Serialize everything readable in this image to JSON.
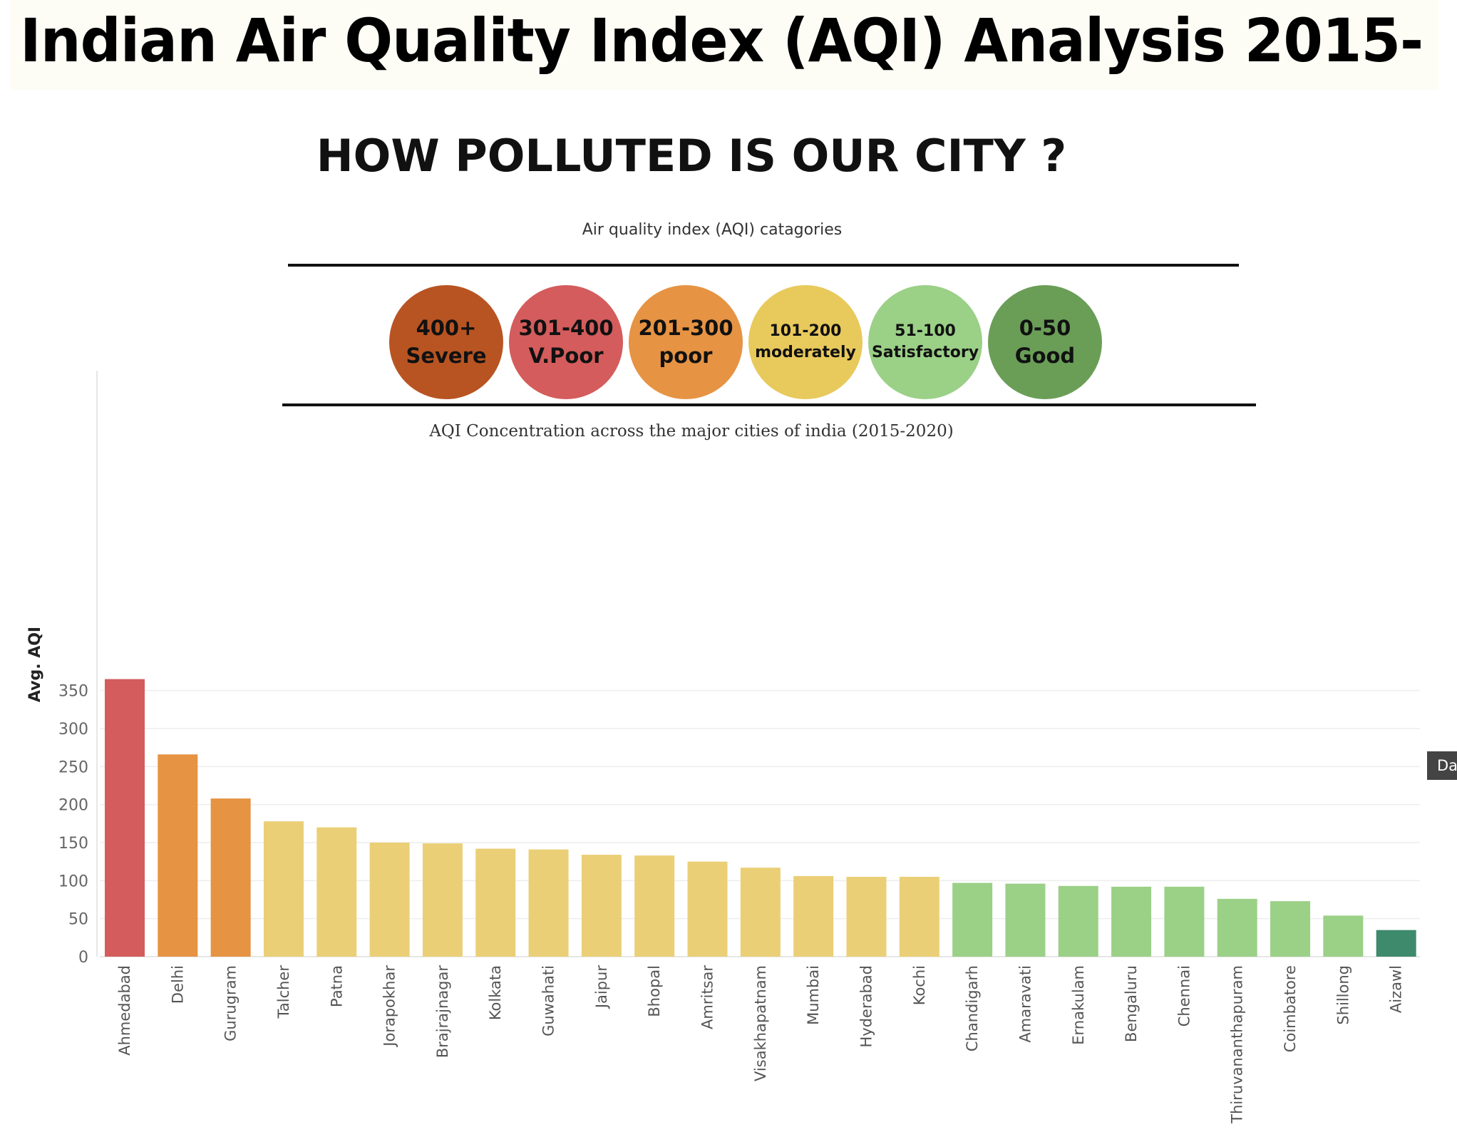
{
  "banner": {
    "title": "Indian Air Quality Index (AQI) Analysis 2015-"
  },
  "headline": "HOW POLLUTED IS OUR CITY ?",
  "categories_caption": "Air quality index (AQI) catagories",
  "aqi_categories": [
    {
      "range": "400+",
      "label": "Severe",
      "color": "#b85422"
    },
    {
      "range": "301-400",
      "label": "V.Poor",
      "color": "#d45c5c"
    },
    {
      "range": "201-300",
      "label": "poor",
      "color": "#e69343"
    },
    {
      "range": "101-200",
      "label": "moderately",
      "color": "#e8c95c"
    },
    {
      "range": "51-100",
      "label": "Satisfactory",
      "color": "#9bd087"
    },
    {
      "range": "0-50",
      "label": "Good",
      "color": "#6a9e57"
    }
  ],
  "side_tab": "Da",
  "chart_data": {
    "type": "bar",
    "title": "AQI Concentration across the major cities of india (2015-2020)",
    "ylabel": "Avg. AQI",
    "xlabel": "",
    "ylim": [
      0,
      370
    ],
    "yticks": [
      0,
      50,
      100,
      150,
      200,
      250,
      300,
      350
    ],
    "grid": true,
    "categories": [
      "Ahmedabad",
      "Delhi",
      "Gurugram",
      "Talcher",
      "Patna",
      "Jorapokhar",
      "Brajrajnagar",
      "Kolkata",
      "Guwahati",
      "Jaipur",
      "Bhopal",
      "Amritsar",
      "Visakhapatnam",
      "Mumbai",
      "Hyderabad",
      "Kochi",
      "Chandigarh",
      "Amaravati",
      "Ernakulam",
      "Bengaluru",
      "Chennai",
      "Thiruvananthapuram",
      "Coimbatore",
      "Shillong",
      "Aizawl"
    ],
    "values": [
      365,
      266,
      208,
      178,
      170,
      150,
      149,
      142,
      141,
      134,
      133,
      125,
      117,
      106,
      105,
      105,
      97,
      96,
      93,
      92,
      92,
      76,
      73,
      54,
      35
    ],
    "bar_colors": [
      "#d45c5c",
      "#e69343",
      "#e69343",
      "#ebcf76",
      "#ebcf76",
      "#ebcf76",
      "#ebcf76",
      "#ebcf76",
      "#ebcf76",
      "#ebcf76",
      "#ebcf76",
      "#ebcf76",
      "#ebcf76",
      "#ebcf76",
      "#ebcf76",
      "#ebcf76",
      "#9bd087",
      "#9bd087",
      "#9bd087",
      "#9bd087",
      "#9bd087",
      "#9bd087",
      "#9bd087",
      "#9bd087",
      "#3e8a6c"
    ]
  }
}
